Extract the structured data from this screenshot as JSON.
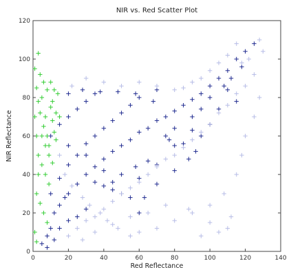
{
  "chart_data": {
    "type": "scatter",
    "title": "NIR vs. Red Scatter Plot",
    "xlabel": "Red Reflectance",
    "ylabel": "NIR Reflectance",
    "xlim": [
      0,
      140
    ],
    "ylim": [
      0,
      120
    ],
    "xticks": [
      "0",
      "20",
      "40",
      "60",
      "80",
      "100",
      "120",
      "140"
    ],
    "yticks": [
      "0",
      "20",
      "40",
      "60",
      "80",
      "100",
      "120"
    ],
    "marker": "+",
    "colors": {
      "vegetation": "#33cc33",
      "dense_cloud": "#1f2a8f",
      "light_cloud": "#b6bce6"
    },
    "series": [
      {
        "color_key": "vegetation",
        "points": [
          [
            1,
            95
          ],
          [
            2,
            85
          ],
          [
            3,
            78
          ],
          [
            4,
            72
          ],
          [
            5,
            80
          ],
          [
            6,
            65
          ],
          [
            7,
            70
          ],
          [
            8,
            60
          ],
          [
            9,
            55
          ],
          [
            10,
            75
          ],
          [
            11,
            68
          ],
          [
            12,
            62
          ],
          [
            13,
            58
          ],
          [
            14,
            82
          ],
          [
            15,
            70
          ],
          [
            3,
            50
          ],
          [
            5,
            45
          ],
          [
            7,
            40
          ],
          [
            9,
            35
          ],
          [
            2,
            30
          ],
          [
            4,
            25
          ],
          [
            6,
            20
          ],
          [
            8,
            15
          ],
          [
            1,
            10
          ],
          [
            2,
            5
          ],
          [
            10,
            88
          ],
          [
            12,
            84
          ],
          [
            3,
            103
          ],
          [
            4,
            92
          ],
          [
            6,
            88
          ],
          [
            8,
            84
          ],
          [
            11,
            78
          ],
          [
            13,
            72
          ],
          [
            5,
            60
          ],
          [
            7,
            55
          ],
          [
            9,
            50
          ],
          [
            11,
            46
          ],
          [
            3,
            40
          ],
          [
            2,
            60
          ],
          [
            1,
            70
          ]
        ]
      },
      {
        "color_key": "dense_cloud",
        "points": [
          [
            5,
            4
          ],
          [
            8,
            8
          ],
          [
            10,
            12
          ],
          [
            12,
            20
          ],
          [
            15,
            24
          ],
          [
            18,
            28
          ],
          [
            20,
            30
          ],
          [
            25,
            35
          ],
          [
            30,
            40
          ],
          [
            35,
            44
          ],
          [
            40,
            48
          ],
          [
            45,
            52
          ],
          [
            50,
            55
          ],
          [
            55,
            58
          ],
          [
            60,
            62
          ],
          [
            65,
            64
          ],
          [
            70,
            68
          ],
          [
            75,
            70
          ],
          [
            80,
            73
          ],
          [
            85,
            76
          ],
          [
            90,
            79
          ],
          [
            95,
            82
          ],
          [
            100,
            86
          ],
          [
            105,
            90
          ],
          [
            110,
            94
          ],
          [
            115,
            100
          ],
          [
            120,
            104
          ],
          [
            125,
            108
          ],
          [
            10,
            30
          ],
          [
            15,
            38
          ],
          [
            20,
            45
          ],
          [
            25,
            50
          ],
          [
            30,
            56
          ],
          [
            35,
            60
          ],
          [
            40,
            64
          ],
          [
            45,
            68
          ],
          [
            50,
            72
          ],
          [
            55,
            76
          ],
          [
            60,
            80
          ],
          [
            70,
            84
          ],
          [
            10,
            60
          ],
          [
            15,
            66
          ],
          [
            20,
            70
          ],
          [
            25,
            74
          ],
          [
            30,
            78
          ],
          [
            35,
            82
          ],
          [
            20,
            55
          ],
          [
            30,
            50
          ],
          [
            40,
            42
          ],
          [
            50,
            40
          ],
          [
            60,
            38
          ],
          [
            70,
            35
          ],
          [
            80,
            42
          ],
          [
            88,
            48
          ],
          [
            92,
            52
          ],
          [
            95,
            60
          ],
          [
            100,
            66
          ],
          [
            105,
            74
          ],
          [
            115,
            78
          ],
          [
            110,
            84
          ],
          [
            60,
            20
          ],
          [
            55,
            28
          ],
          [
            45,
            32
          ],
          [
            40,
            34
          ],
          [
            35,
            36
          ],
          [
            30,
            22
          ],
          [
            25,
            18
          ],
          [
            20,
            16
          ],
          [
            15,
            12
          ],
          [
            12,
            6
          ],
          [
            8,
            2
          ],
          [
            20,
            82
          ],
          [
            28,
            84
          ],
          [
            38,
            83
          ],
          [
            48,
            83
          ],
          [
            58,
            82
          ],
          [
            68,
            78
          ],
          [
            75,
            60
          ],
          [
            80,
            64
          ],
          [
            85,
            56
          ],
          [
            90,
            63
          ],
          [
            70,
            45
          ],
          [
            65,
            47
          ],
          [
            58,
            44
          ],
          [
            63,
            28
          ],
          [
            50,
            30
          ],
          [
            45,
            36
          ],
          [
            100,
            80
          ],
          [
            108,
            86
          ],
          [
            112,
            90
          ],
          [
            118,
            96
          ],
          [
            90,
            70
          ],
          [
            95,
            74
          ],
          [
            80,
            55
          ],
          [
            77,
            58
          ]
        ]
      },
      {
        "color_key": "light_cloud",
        "points": [
          [
            20,
            8
          ],
          [
            25,
            12
          ],
          [
            30,
            16
          ],
          [
            35,
            18
          ],
          [
            40,
            22
          ],
          [
            45,
            26
          ],
          [
            50,
            30
          ],
          [
            55,
            33
          ],
          [
            60,
            36
          ],
          [
            65,
            40
          ],
          [
            70,
            44
          ],
          [
            75,
            48
          ],
          [
            80,
            50
          ],
          [
            85,
            54
          ],
          [
            90,
            58
          ],
          [
            95,
            62
          ],
          [
            100,
            66
          ],
          [
            105,
            72
          ],
          [
            110,
            76
          ],
          [
            115,
            82
          ],
          [
            120,
            86
          ],
          [
            125,
            92
          ],
          [
            118,
            98
          ],
          [
            122,
            100
          ],
          [
            110,
            102
          ],
          [
            105,
            98
          ],
          [
            100,
            94
          ],
          [
            95,
            90
          ],
          [
            90,
            88
          ],
          [
            85,
            85
          ],
          [
            110,
            12
          ],
          [
            105,
            10
          ],
          [
            95,
            8
          ],
          [
            100,
            15
          ],
          [
            112,
            18
          ],
          [
            88,
            22
          ],
          [
            75,
            24
          ],
          [
            65,
            20
          ],
          [
            55,
            18
          ],
          [
            45,
            14
          ],
          [
            35,
            10
          ],
          [
            28,
            6
          ],
          [
            130,
            104
          ],
          [
            128,
            110
          ],
          [
            115,
            108
          ],
          [
            40,
            88
          ],
          [
            30,
            90
          ],
          [
            22,
            86
          ],
          [
            50,
            86
          ],
          [
            60,
            88
          ],
          [
            70,
            86
          ],
          [
            80,
            84
          ],
          [
            60,
            10
          ],
          [
            70,
            12
          ],
          [
            80,
            16
          ],
          [
            90,
            20
          ],
          [
            100,
            24
          ],
          [
            108,
            30
          ],
          [
            115,
            40
          ],
          [
            118,
            50
          ],
          [
            120,
            60
          ],
          [
            125,
            70
          ],
          [
            128,
            80
          ],
          [
            15,
            50
          ],
          [
            18,
            40
          ],
          [
            22,
            34
          ],
          [
            28,
            28
          ],
          [
            32,
            24
          ],
          [
            38,
            20
          ],
          [
            42,
            16
          ],
          [
            48,
            12
          ],
          [
            55,
            8
          ]
        ]
      }
    ]
  }
}
